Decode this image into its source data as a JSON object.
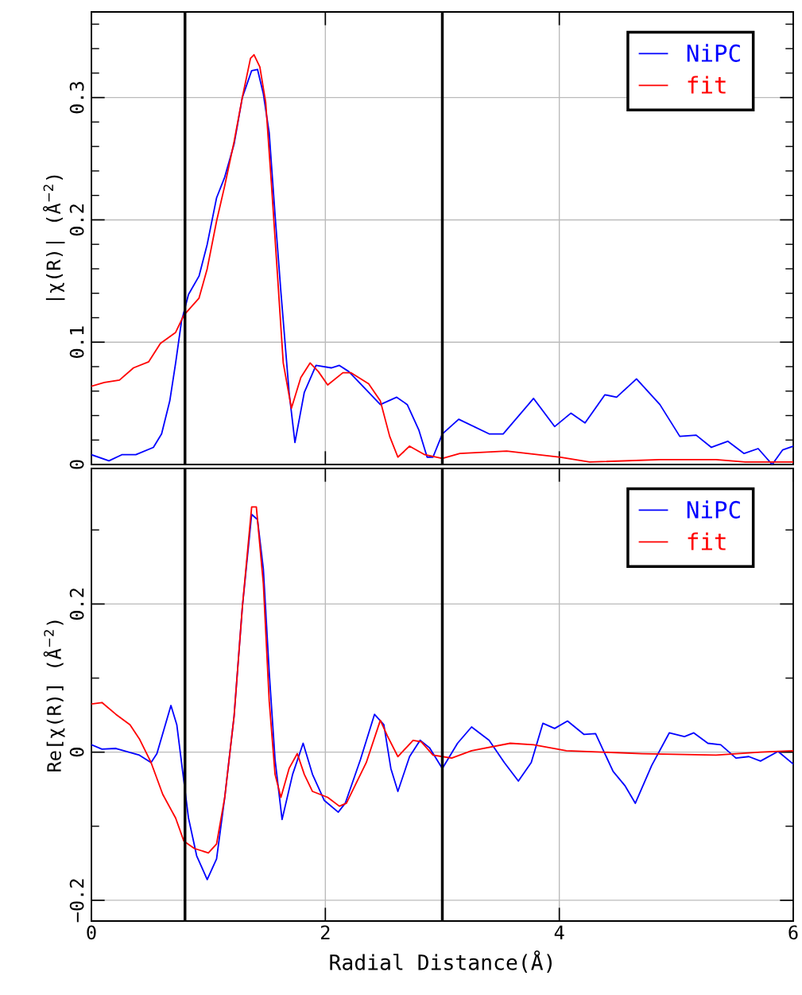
{
  "chart_data": [
    {
      "type": "line",
      "ylabel": "|χ(R)| (Å$^{−2}$)",
      "xlim": [
        0,
        6
      ],
      "ylim": [
        0,
        0.37
      ],
      "xticks": [
        0,
        2,
        4,
        6
      ],
      "yticks": [
        0,
        {
          "value": 0.02,
          "label": null
        },
        {
          "value": 0.04,
          "label": null
        },
        {
          "value": 0.06,
          "label": null
        },
        {
          "value": 0.08,
          "label": null
        },
        0.1,
        {
          "value": 0.12,
          "label": null
        },
        {
          "value": 0.14,
          "label": null
        },
        {
          "value": 0.16,
          "label": null
        },
        {
          "value": 0.18,
          "label": null
        },
        0.2,
        {
          "value": 0.22,
          "label": null
        },
        {
          "value": 0.24,
          "label": null
        },
        {
          "value": 0.26,
          "label": null
        },
        {
          "value": 0.28,
          "label": null
        },
        0.3,
        {
          "value": 0.32,
          "label": null
        },
        {
          "value": 0.34,
          "label": null
        },
        {
          "value": 0.36,
          "label": null
        }
      ],
      "tick_labels": "y",
      "grid": true,
      "legend": "top right",
      "line_style": "solid",
      "ref_lines": [
        {
          "axis": "x",
          "value": 0.8,
          "label": null,
          "color": "#000000"
        },
        {
          "axis": "x",
          "value": 3,
          "label": null,
          "color": "#000000"
        }
      ],
      "series": [
        {
          "name": "NiPC",
          "color": "#0000ff",
          "x": [
            0,
            0.15,
            0.26,
            0.38,
            0.53,
            0.6,
            0.67,
            0.72,
            0.77,
            0.83,
            0.92,
            0.99,
            1.07,
            1.14,
            1.22,
            1.29,
            1.37,
            1.42,
            1.47,
            1.52,
            1.57,
            1.62,
            1.69,
            1.74,
            1.82,
            1.92,
            2.05,
            2.12,
            2.2,
            2.35,
            2.47,
            2.61,
            2.7,
            2.8,
            2.87,
            2.92,
            3.0,
            3.14,
            3.4,
            3.52,
            3.78,
            3.96,
            4.1,
            4.22,
            4.39,
            4.49,
            4.66,
            4.86,
            5.03,
            5.17,
            5.3,
            5.44,
            5.58,
            5.7,
            5.82,
            5.91,
            6.0
          ],
          "values": [
            0.008,
            0.003,
            0.008,
            0.008,
            0.014,
            0.025,
            0.052,
            0.083,
            0.117,
            0.139,
            0.154,
            0.18,
            0.218,
            0.235,
            0.262,
            0.3,
            0.322,
            0.323,
            0.303,
            0.271,
            0.204,
            0.141,
            0.059,
            0.018,
            0.059,
            0.081,
            0.079,
            0.081,
            0.076,
            0.061,
            0.049,
            0.055,
            0.049,
            0.028,
            0.006,
            0.006,
            0.025,
            0.037,
            0.025,
            0.025,
            0.054,
            0.031,
            0.042,
            0.034,
            0.057,
            0.055,
            0.07,
            0.049,
            0.023,
            0.024,
            0.014,
            0.019,
            0.009,
            0.013,
            0.0,
            0.012,
            0.015
          ]
        },
        {
          "name": "fit",
          "color": "#ff0000",
          "x": [
            0,
            0.11,
            0.24,
            0.36,
            0.49,
            0.59,
            0.72,
            0.79,
            0.92,
            0.99,
            1.07,
            1.14,
            1.22,
            1.29,
            1.36,
            1.39,
            1.44,
            1.49,
            1.54,
            1.59,
            1.64,
            1.71,
            1.79,
            1.87,
            1.94,
            2.02,
            2.15,
            2.22,
            2.37,
            2.47,
            2.55,
            2.62,
            2.72,
            2.85,
            3.0,
            3.15,
            3.55,
            4.01,
            4.26,
            4.86,
            5.34,
            5.59,
            6.0
          ],
          "values": [
            0.064,
            0.067,
            0.069,
            0.079,
            0.084,
            0.099,
            0.108,
            0.122,
            0.136,
            0.16,
            0.199,
            0.228,
            0.264,
            0.3,
            0.332,
            0.335,
            0.325,
            0.296,
            0.228,
            0.156,
            0.083,
            0.046,
            0.071,
            0.083,
            0.076,
            0.065,
            0.075,
            0.075,
            0.066,
            0.052,
            0.023,
            0.006,
            0.015,
            0.008,
            0.005,
            0.009,
            0.011,
            0.006,
            0.002,
            0.004,
            0.004,
            0.002,
            0.002
          ]
        }
      ]
    },
    {
      "type": "line",
      "xlabel": "Radial Distance(Å)",
      "ylabel": "Re[χ(R)] (Å$^{−2}$)",
      "xlim": [
        0,
        6
      ],
      "ylim": [
        -0.228,
        0.383
      ],
      "xticks": [
        0,
        2,
        4,
        6
      ],
      "yticks": [
        {
          "value": -0.2,
          "label": "−0.2"
        },
        {
          "value": -0.1,
          "label": null
        },
        0,
        {
          "value": 0.1,
          "label": null
        },
        0.2,
        {
          "value": 0.3,
          "label": null
        }
      ],
      "grid": true,
      "legend": "top right",
      "line_style": "solid",
      "ref_lines": [
        {
          "axis": "x",
          "value": 0.8,
          "label": null,
          "color": "#000000"
        },
        {
          "axis": "x",
          "value": 3,
          "label": null,
          "color": "#000000"
        }
      ],
      "series": [
        {
          "name": "NiPC",
          "color": "#0000ff",
          "x": [
            0,
            0.09,
            0.21,
            0.41,
            0.51,
            0.56,
            0.68,
            0.73,
            0.78,
            0.83,
            0.9,
            0.99,
            1.07,
            1.14,
            1.22,
            1.29,
            1.37,
            1.42,
            1.47,
            1.52,
            1.57,
            1.63,
            1.72,
            1.81,
            1.89,
            1.99,
            2.11,
            2.17,
            2.3,
            2.42,
            2.5,
            2.56,
            2.62,
            2.72,
            2.81,
            2.89,
            3.0,
            3.13,
            3.25,
            3.4,
            3.53,
            3.65,
            3.76,
            3.86,
            3.96,
            4.07,
            4.21,
            4.31,
            4.46,
            4.56,
            4.65,
            4.79,
            4.94,
            5.07,
            5.15,
            5.27,
            5.38,
            5.51,
            5.62,
            5.72,
            5.87,
            6.0
          ],
          "values": [
            0.01,
            0.004,
            0.005,
            -0.004,
            -0.014,
            -0.002,
            0.063,
            0.037,
            -0.026,
            -0.089,
            -0.14,
            -0.172,
            -0.144,
            -0.061,
            0.049,
            0.195,
            0.321,
            0.314,
            0.247,
            0.108,
            -0.01,
            -0.091,
            -0.03,
            0.012,
            -0.03,
            -0.065,
            -0.081,
            -0.069,
            -0.01,
            0.051,
            0.037,
            -0.022,
            -0.053,
            -0.006,
            0.016,
            0.006,
            -0.022,
            0.012,
            0.034,
            0.016,
            -0.014,
            -0.039,
            -0.014,
            0.039,
            0.032,
            0.042,
            0.024,
            0.025,
            -0.026,
            -0.045,
            -0.069,
            -0.018,
            0.026,
            0.021,
            0.026,
            0.012,
            0.01,
            -0.008,
            -0.006,
            -0.012,
            0.001,
            -0.016
          ]
        },
        {
          "name": "fit",
          "color": "#ff0000",
          "x": [
            0,
            0.09,
            0.21,
            0.33,
            0.41,
            0.51,
            0.61,
            0.72,
            0.79,
            0.88,
            1.0,
            1.07,
            1.14,
            1.22,
            1.29,
            1.37,
            1.41,
            1.47,
            1.52,
            1.57,
            1.62,
            1.69,
            1.76,
            1.82,
            1.89,
            2.02,
            2.12,
            2.18,
            2.35,
            2.47,
            2.53,
            2.62,
            2.75,
            2.82,
            2.92,
            3.0,
            3.08,
            3.25,
            3.58,
            3.78,
            4.06,
            4.71,
            5.34,
            5.72,
            6.0
          ],
          "values": [
            0.065,
            0.067,
            0.051,
            0.037,
            0.018,
            -0.014,
            -0.057,
            -0.089,
            -0.12,
            -0.13,
            -0.136,
            -0.124,
            -0.061,
            0.049,
            0.195,
            0.331,
            0.331,
            0.227,
            0.069,
            -0.03,
            -0.061,
            -0.022,
            -0.002,
            -0.03,
            -0.053,
            -0.061,
            -0.073,
            -0.069,
            -0.014,
            0.043,
            0.022,
            -0.006,
            0.016,
            0.014,
            -0.004,
            -0.006,
            -0.008,
            0.002,
            0.012,
            0.01,
            0.002,
            -0.002,
            -0.004,
            0.0,
            0.002
          ]
        }
      ]
    }
  ]
}
